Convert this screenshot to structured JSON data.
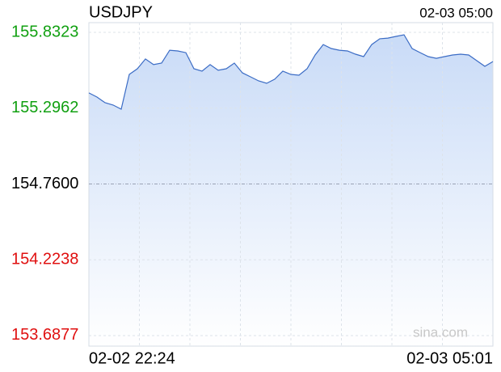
{
  "chart_data": {
    "type": "line",
    "title": "USDJPY",
    "timestamp": "02-03 05:00",
    "watermark": "sina.com",
    "categories": [
      "02-02 22:24",
      null,
      null,
      null,
      null,
      null,
      null,
      null,
      null,
      null,
      null,
      null,
      null,
      null,
      null,
      null,
      null,
      null,
      null,
      null,
      null,
      null,
      null,
      null,
      null,
      null,
      null,
      null,
      null,
      null,
      null,
      null,
      null,
      null,
      null,
      null,
      null,
      null,
      null,
      null,
      null,
      null,
      null,
      null,
      null,
      null,
      null,
      null,
      null,
      null,
      "02-03 05:01"
    ],
    "values": [
      155.404,
      155.375,
      155.335,
      155.318,
      155.289,
      155.535,
      155.575,
      155.644,
      155.604,
      155.615,
      155.706,
      155.701,
      155.689,
      155.575,
      155.558,
      155.604,
      155.564,
      155.575,
      155.615,
      155.546,
      155.518,
      155.489,
      155.472,
      155.501,
      155.558,
      155.535,
      155.529,
      155.575,
      155.672,
      155.746,
      155.718,
      155.706,
      155.701,
      155.678,
      155.661,
      155.746,
      155.787,
      155.792,
      155.804,
      155.815,
      155.718,
      155.689,
      155.661,
      155.649,
      155.661,
      155.672,
      155.678,
      155.672,
      155.632,
      155.592,
      155.626
    ],
    "color": "#3b6cc5",
    "ylim": [
      153.613,
      155.901
    ],
    "yticks": [
      155.8323,
      155.2962,
      {
        "value": 154.76,
        "label": "154.7600"
      },
      154.2238,
      153.6877
    ],
    "tick_colors": {
      "up": "#11a011",
      "flat": "#000000",
      "down": "#e01010"
    },
    "grid": true
  }
}
